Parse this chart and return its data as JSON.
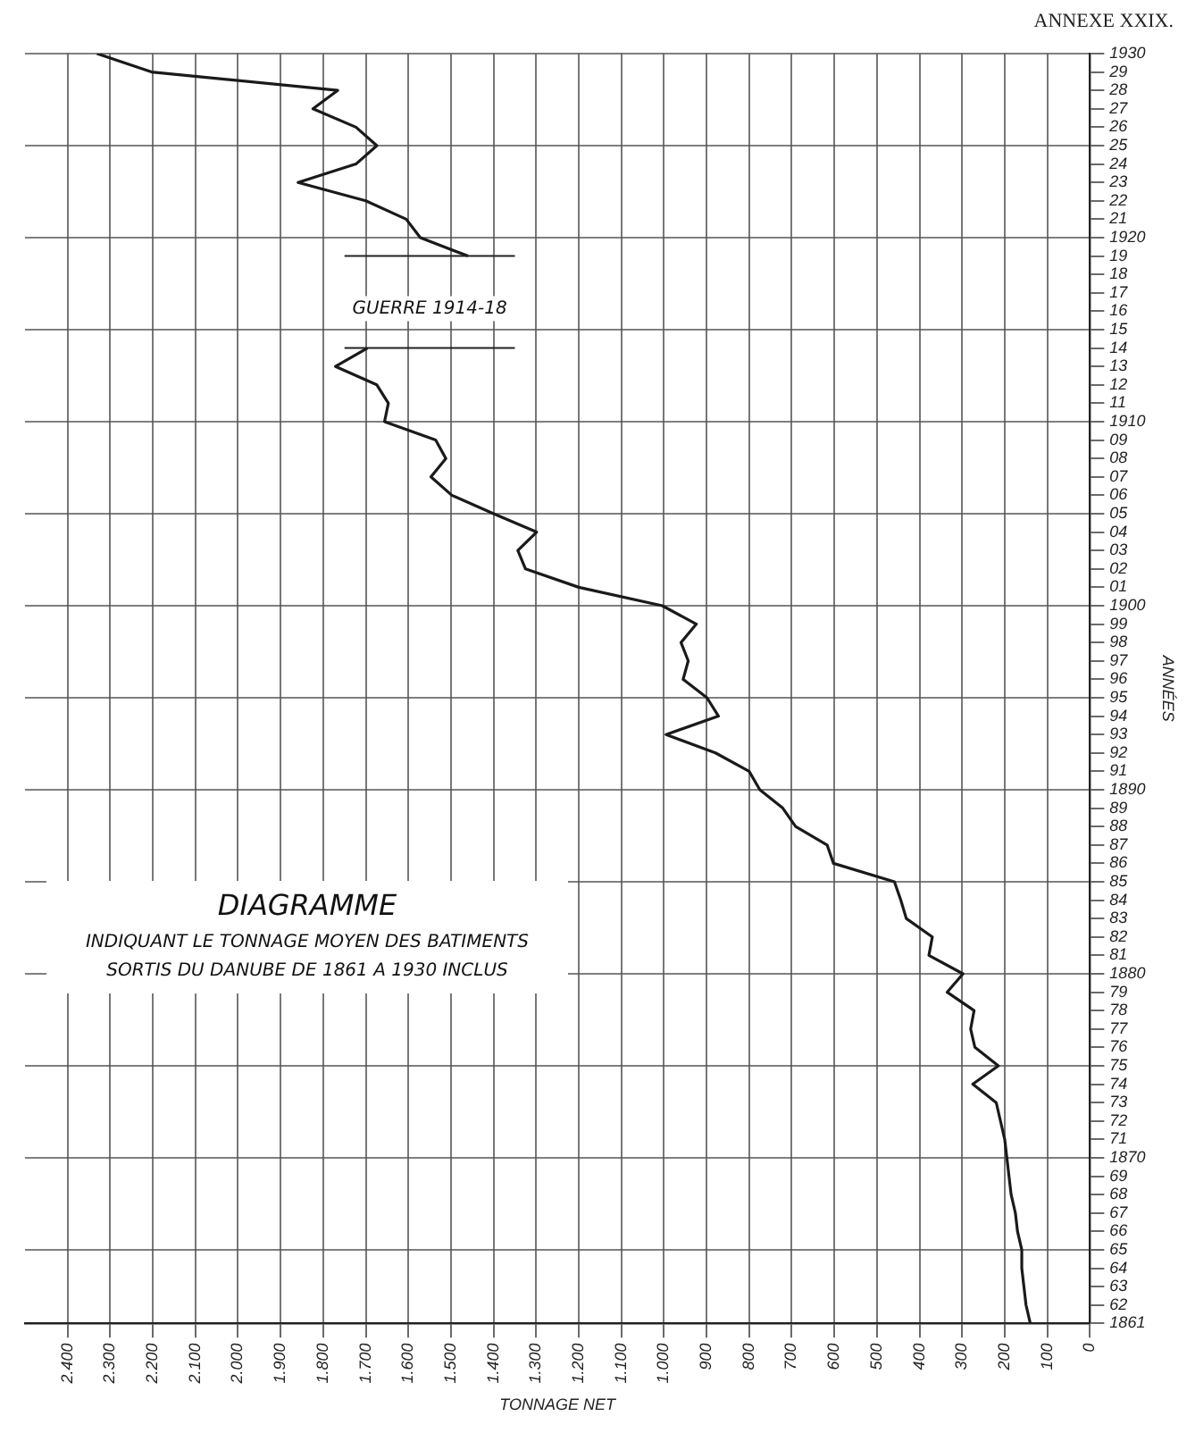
{
  "chart_data": {
    "type": "line",
    "title": "DIAGRAMME",
    "subtitle": "INDIQUANT LE TONNAGE MOYEN DES BATIMENTS SORTIS DU DANUBE DE 1861 A 1930 INCLUS",
    "orientation": "horizontal",
    "xlabel": "TONNAGE NET",
    "ylabel": "ANNÉES",
    "annotations": [
      "ANNEXE XXIX."
    ],
    "x": [
      1861,
      1862,
      1863,
      1864,
      1865,
      1866,
      1867,
      1868,
      1869,
      1870,
      1871,
      1872,
      1873,
      1874,
      1875,
      1876,
      1877,
      1878,
      1879,
      1880,
      1881,
      1882,
      1883,
      1884,
      1885,
      1886,
      1887,
      1888,
      1889,
      1890,
      1891,
      1892,
      1893,
      1894,
      1895,
      1896,
      1897,
      1898,
      1899,
      1900,
      1901,
      1902,
      1903,
      1904,
      1905,
      1906,
      1907,
      1908,
      1909,
      1910,
      1911,
      1912,
      1913,
      1914,
      1915,
      1916,
      1917,
      1918,
      1919,
      1920,
      1921,
      1922,
      1923,
      1924,
      1925,
      1926,
      1927,
      1928,
      1929,
      1930
    ],
    "series": [
      {
        "color": "#1a1a1a",
        "values": [
          140,
          150,
          155,
          160,
          160,
          170,
          175,
          185,
          190,
          195,
          200,
          210,
          220,
          275,
          215,
          270,
          280,
          272,
          335,
          298,
          378,
          370,
          431,
          444,
          459,
          602,
          617,
          691,
          721,
          775,
          800,
          879,
          995,
          872,
          899,
          955,
          943,
          960,
          924,
          1004,
          1200,
          1325,
          1343,
          1299,
          1400,
          1498,
          1547,
          1512,
          1536,
          1656,
          1647,
          1674,
          1771,
          1696,
          null,
          null,
          null,
          null,
          1460,
          1572,
          1605,
          1700,
          1859,
          1723,
          1674,
          1723,
          1824,
          1766,
          2203,
          2331
        ]
      }
    ],
    "xlim": [
      2500,
      0
    ],
    "xticks": [
      {
        "value": 2400,
        "label": "2.400"
      },
      {
        "value": 2300,
        "label": "2.300"
      },
      {
        "value": 2200,
        "label": "2.200"
      },
      {
        "value": 2100,
        "label": "2.100"
      },
      {
        "value": 2000,
        "label": "2.000"
      },
      {
        "value": 1900,
        "label": "1.900"
      },
      {
        "value": 1800,
        "label": "1.800"
      },
      {
        "value": 1700,
        "label": "1.700"
      },
      {
        "value": 1600,
        "label": "1.600"
      },
      {
        "value": 1500,
        "label": "1.500"
      },
      {
        "value": 1400,
        "label": "1.400"
      },
      {
        "value": 1300,
        "label": "1.300"
      },
      {
        "value": 1200,
        "label": "1.200"
      },
      {
        "value": 1100,
        "label": "1.100"
      },
      {
        "value": 1000,
        "label": "1.000"
      },
      900,
      800,
      700,
      600,
      500,
      400,
      300,
      200,
      100,
      0
    ],
    "ylim": [
      1861,
      1930
    ],
    "yticks": [
      1861,
      {
        "value": 1862,
        "label": "62"
      },
      {
        "value": 1863,
        "label": "63"
      },
      {
        "value": 1864,
        "label": "64"
      },
      {
        "value": 1865,
        "label": "65"
      },
      {
        "value": 1866,
        "label": "66"
      },
      {
        "value": 1867,
        "label": "67"
      },
      {
        "value": 1868,
        "label": "68"
      },
      {
        "value": 1869,
        "label": "69"
      },
      1870,
      {
        "value": 1871,
        "label": "71"
      },
      {
        "value": 1872,
        "label": "72"
      },
      {
        "value": 1873,
        "label": "73"
      },
      {
        "value": 1874,
        "label": "74"
      },
      {
        "value": 1875,
        "label": "75"
      },
      {
        "value": 1876,
        "label": "76"
      },
      {
        "value": 1877,
        "label": "77"
      },
      {
        "value": 1878,
        "label": "78"
      },
      {
        "value": 1879,
        "label": "79"
      },
      1880,
      {
        "value": 1881,
        "label": "81"
      },
      {
        "value": 1882,
        "label": "82"
      },
      {
        "value": 1883,
        "label": "83"
      },
      {
        "value": 1884,
        "label": "84"
      },
      {
        "value": 1885,
        "label": "85"
      },
      {
        "value": 1886,
        "label": "86"
      },
      {
        "value": 1887,
        "label": "87"
      },
      {
        "value": 1888,
        "label": "88"
      },
      {
        "value": 1889,
        "label": "89"
      },
      1890,
      {
        "value": 1891,
        "label": "91"
      },
      {
        "value": 1892,
        "label": "92"
      },
      {
        "value": 1893,
        "label": "93"
      },
      {
        "value": 1894,
        "label": "94"
      },
      {
        "value": 1895,
        "label": "95"
      },
      {
        "value": 1896,
        "label": "96"
      },
      {
        "value": 1897,
        "label": "97"
      },
      {
        "value": 1898,
        "label": "98"
      },
      {
        "value": 1899,
        "label": "99"
      },
      1900,
      {
        "value": 1901,
        "label": "01"
      },
      {
        "value": 1902,
        "label": "02"
      },
      {
        "value": 1903,
        "label": "03"
      },
      {
        "value": 1904,
        "label": "04"
      },
      {
        "value": 1905,
        "label": "05"
      },
      {
        "value": 1906,
        "label": "06"
      },
      {
        "value": 1907,
        "label": "07"
      },
      {
        "value": 1908,
        "label": "08"
      },
      {
        "value": 1909,
        "label": "09"
      },
      1910,
      {
        "value": 1911,
        "label": "11"
      },
      {
        "value": 1912,
        "label": "12"
      },
      {
        "value": 1913,
        "label": "13"
      },
      {
        "value": 1914,
        "label": "14"
      },
      {
        "value": 1915,
        "label": "15"
      },
      {
        "value": 1916,
        "label": "16"
      },
      {
        "value": 1917,
        "label": "17"
      },
      {
        "value": 1918,
        "label": "18"
      },
      {
        "value": 1919,
        "label": "19"
      },
      1920,
      {
        "value": 1921,
        "label": "21"
      },
      {
        "value": 1922,
        "label": "22"
      },
      {
        "value": 1923,
        "label": "23"
      },
      {
        "value": 1924,
        "label": "24"
      },
      {
        "value": 1925,
        "label": "25"
      },
      {
        "value": 1926,
        "label": "26"
      },
      {
        "value": 1927,
        "label": "27"
      },
      {
        "value": 1928,
        "label": "28"
      },
      {
        "value": 1929,
        "label": "29"
      },
      1930
    ],
    "ref_lines": [
      {
        "axis": "y",
        "value": 1914,
        "label": "GUERRE 1914-18"
      },
      {
        "axis": "y",
        "value": 1919
      }
    ],
    "grid": true,
    "marker": "none",
    "line_style": "solid",
    "legend": false
  }
}
